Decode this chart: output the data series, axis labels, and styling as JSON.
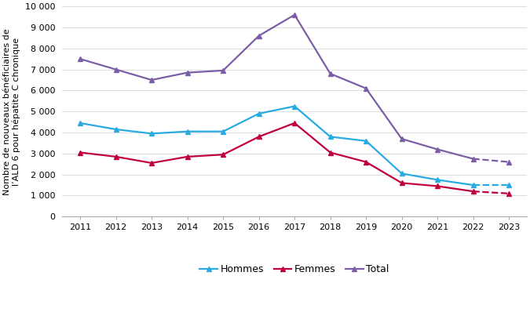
{
  "years_solid": [
    2011,
    2012,
    2013,
    2014,
    2015,
    2016,
    2017,
    2018,
    2019,
    2020,
    2021,
    2022
  ],
  "years_dashed": [
    2022,
    2023
  ],
  "hommes_solid": [
    4450,
    4150,
    3950,
    4050,
    4050,
    4900,
    5250,
    3800,
    3600,
    2050,
    1750,
    1500
  ],
  "hommes_dashed": [
    1500,
    1500
  ],
  "femmes_solid": [
    3050,
    2850,
    2550,
    2850,
    2950,
    3800,
    4450,
    3050,
    2600,
    1600,
    1450,
    1200
  ],
  "femmes_dashed": [
    1200,
    1100
  ],
  "total_solid": [
    7500,
    7000,
    6500,
    6850,
    6950,
    8600,
    9600,
    6800,
    6100,
    3700,
    3200,
    2750
  ],
  "total_dashed": [
    2750,
    2600
  ],
  "color_hommes": "#29ABE2",
  "color_femmes": "#C0003C",
  "color_total": "#7B5EA7",
  "ylabel_line1": "Nombre de nouveaux bénéficiaires de",
  "ylabel_line2": "l’ALD 6 pour hépatite C chronique",
  "ylim": [
    0,
    10000
  ],
  "yticks": [
    0,
    1000,
    2000,
    3000,
    4000,
    5000,
    6000,
    7000,
    8000,
    9000,
    10000
  ],
  "ytick_labels": [
    "0",
    "1 000",
    "2 000",
    "3 000",
    "4 000",
    "5 000",
    "6 000",
    "7 000",
    "8 000",
    "9 000",
    "10 000"
  ],
  "legend_labels": [
    "Hommes",
    "Femmes",
    "Total"
  ],
  "background_color": "#FFFFFF",
  "marker": "^",
  "linewidth": 1.6,
  "markersize": 5,
  "grid_color": "#DDDDDD",
  "spine_color": "#AAAAAA"
}
